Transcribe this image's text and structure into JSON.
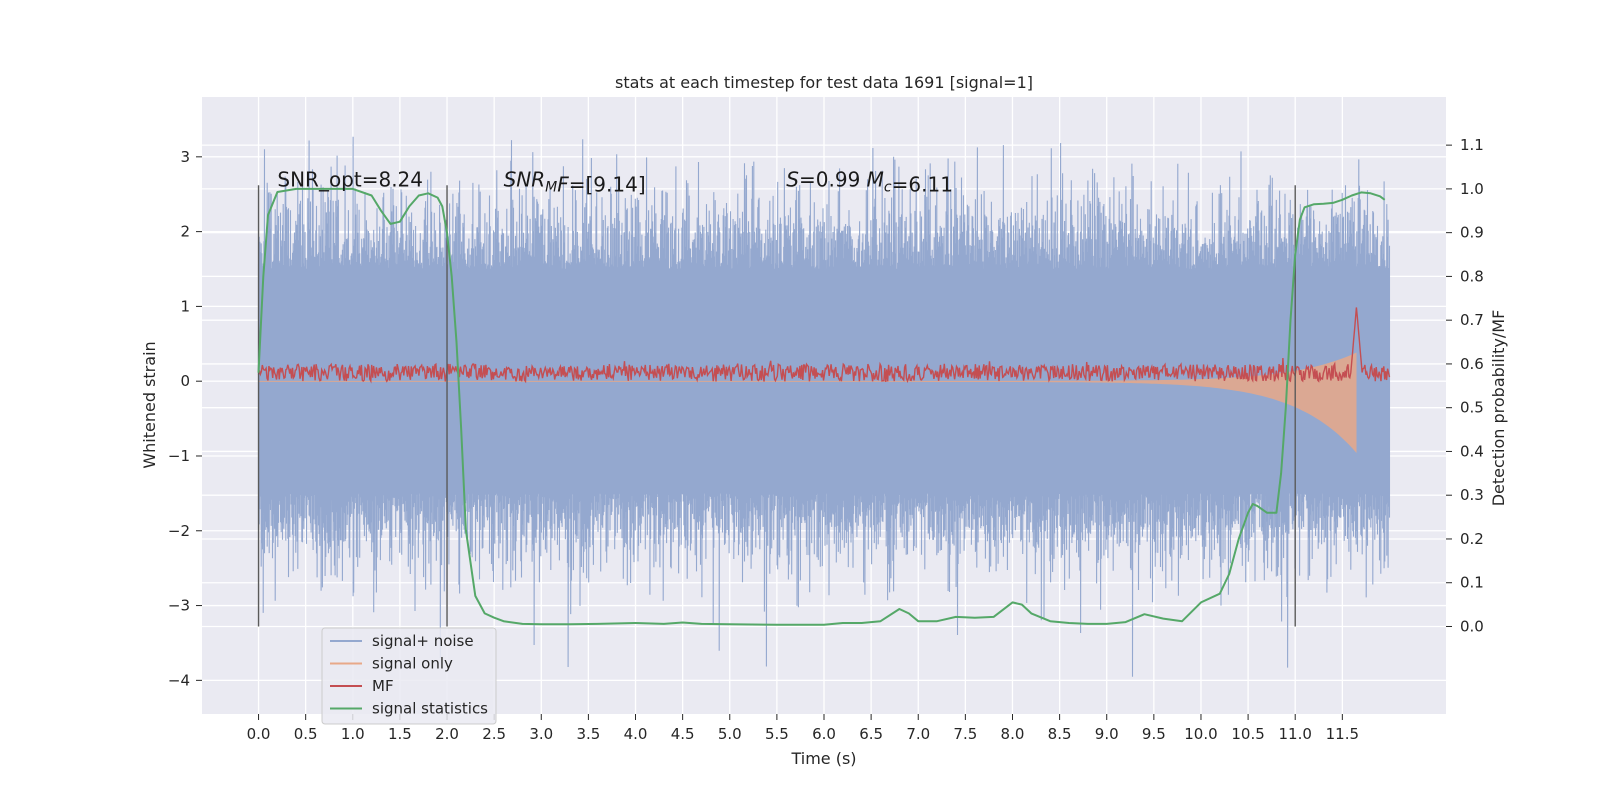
{
  "chart_data": {
    "type": "line",
    "title": "stats at each timestep for test data 1691 [signal=1]",
    "xlabel": "Time (s)",
    "ylabel": "Whitened strain",
    "ylabel_right": "Detection probability/MF",
    "xlim": [
      -0.6,
      12.6
    ],
    "ylim": [
      -4.45,
      3.8
    ],
    "ylim_right": [
      -0.2,
      1.21
    ],
    "xticks": [
      0.0,
      0.5,
      1.0,
      1.5,
      2.0,
      2.5,
      3.0,
      3.5,
      4.0,
      4.5,
      5.0,
      5.5,
      6.0,
      6.5,
      7.0,
      7.5,
      8.0,
      8.5,
      9.0,
      9.5,
      10.0,
      10.5,
      11.0,
      11.5
    ],
    "xtick_labels": [
      "0.0",
      "0.5",
      "1.0",
      "1.5",
      "2.0",
      "2.5",
      "3.0",
      "3.5",
      "4.0",
      "4.5",
      "5.0",
      "5.5",
      "6.0",
      "6.5",
      "7.0",
      "7.5",
      "8.0",
      "8.5",
      "9.0",
      "9.5",
      "10.0",
      "10.5",
      "11.0",
      "11.5"
    ],
    "yticks": [
      -4,
      -3,
      -2,
      -1,
      0,
      1,
      2,
      3
    ],
    "ytick_labels": [
      "−4",
      "−3",
      "−2",
      "−1",
      "0",
      "1",
      "2",
      "3"
    ],
    "yticks_right": [
      0.0,
      0.1,
      0.2,
      0.3,
      0.4,
      0.5,
      0.6,
      0.7,
      0.8,
      0.9,
      1.0,
      1.1
    ],
    "ytick_labels_right": [
      "0.0",
      "0.1",
      "0.2",
      "0.3",
      "0.4",
      "0.5",
      "0.6",
      "0.7",
      "0.8",
      "0.9",
      "1.0",
      "1.1"
    ],
    "grid": true,
    "legend_position": "lower-left",
    "vertical_lines": [
      0.0,
      2.0,
      11.0
    ],
    "annotations": [
      {
        "x": 0.2,
        "y": 2.6,
        "text": "SNR_opt=8.24"
      },
      {
        "x": 2.6,
        "y": 2.6,
        "parts": [
          {
            "t": "SNR",
            "i": true
          },
          {
            "t": "M",
            "i": true,
            "sub": true
          },
          {
            "t": "F",
            "i": true
          },
          {
            "t": "=[9.14]"
          }
        ]
      },
      {
        "x": 5.6,
        "y": 2.6,
        "parts": [
          {
            "t": "S",
            "i": true
          },
          {
            "t": "=0.99   "
          },
          {
            "t": "M",
            "i": true
          },
          {
            "t": "c",
            "i": true,
            "sub": true
          },
          {
            "t": "=6.11"
          }
        ]
      }
    ],
    "series": [
      {
        "name": "signal+ noise",
        "color": "#94a8cf",
        "axis": "left",
        "kind": "noise",
        "x_range": [
          0.0,
          12.0
        ],
        "band": [
          -1.5,
          1.5
        ],
        "peak_max": 3.45,
        "peak_min": -4.1
      },
      {
        "name": "signal only",
        "color": "#e8a888",
        "axis": "left",
        "kind": "chirp",
        "x_range": [
          0.0,
          11.65
        ],
        "amplitude_end": 0.95
      },
      {
        "name": "MF",
        "color": "#c44e52",
        "axis": "right",
        "kind": "band",
        "x_range": [
          0.0,
          12.0
        ],
        "level": 0.58,
        "peak_t": 11.65,
        "peak_value": 0.73
      },
      {
        "name": "signal statistics",
        "color": "#55a868",
        "axis": "right",
        "kind": "line",
        "x": [
          0.0,
          0.05,
          0.1,
          0.2,
          0.4,
          0.6,
          0.8,
          1.0,
          1.2,
          1.3,
          1.4,
          1.5,
          1.6,
          1.7,
          1.8,
          1.9,
          1.95,
          2.0,
          2.05,
          2.1,
          2.15,
          2.2,
          2.3,
          2.4,
          2.5,
          2.6,
          2.8,
          3.0,
          3.3,
          3.6,
          4.0,
          4.3,
          4.5,
          4.7,
          5.0,
          5.5,
          5.8,
          6.0,
          6.2,
          6.4,
          6.6,
          6.8,
          6.9,
          7.0,
          7.2,
          7.4,
          7.6,
          7.8,
          8.0,
          8.1,
          8.2,
          8.4,
          8.6,
          8.8,
          9.0,
          9.2,
          9.4,
          9.6,
          9.8,
          10.0,
          10.2,
          10.3,
          10.4,
          10.5,
          10.55,
          10.6,
          10.7,
          10.8,
          10.85,
          10.9,
          10.95,
          11.0,
          11.05,
          11.1,
          11.2,
          11.3,
          11.4,
          11.5,
          11.6,
          11.7,
          11.8,
          11.9,
          11.95
        ],
        "values": [
          0.58,
          0.8,
          0.94,
          0.993,
          1.0,
          1.0,
          1.0,
          1.0,
          0.985,
          0.95,
          0.92,
          0.925,
          0.96,
          0.985,
          0.99,
          0.98,
          0.96,
          0.9,
          0.8,
          0.65,
          0.45,
          0.22,
          0.07,
          0.03,
          0.02,
          0.012,
          0.006,
          0.005,
          0.005,
          0.006,
          0.008,
          0.006,
          0.009,
          0.006,
          0.005,
          0.004,
          0.004,
          0.004,
          0.008,
          0.008,
          0.012,
          0.04,
          0.03,
          0.012,
          0.012,
          0.022,
          0.02,
          0.022,
          0.055,
          0.05,
          0.03,
          0.012,
          0.008,
          0.006,
          0.006,
          0.01,
          0.028,
          0.018,
          0.012,
          0.055,
          0.075,
          0.12,
          0.2,
          0.26,
          0.28,
          0.275,
          0.26,
          0.26,
          0.35,
          0.5,
          0.7,
          0.85,
          0.93,
          0.958,
          0.965,
          0.966,
          0.968,
          0.975,
          0.985,
          0.992,
          0.99,
          0.983,
          0.975
        ]
      }
    ]
  }
}
